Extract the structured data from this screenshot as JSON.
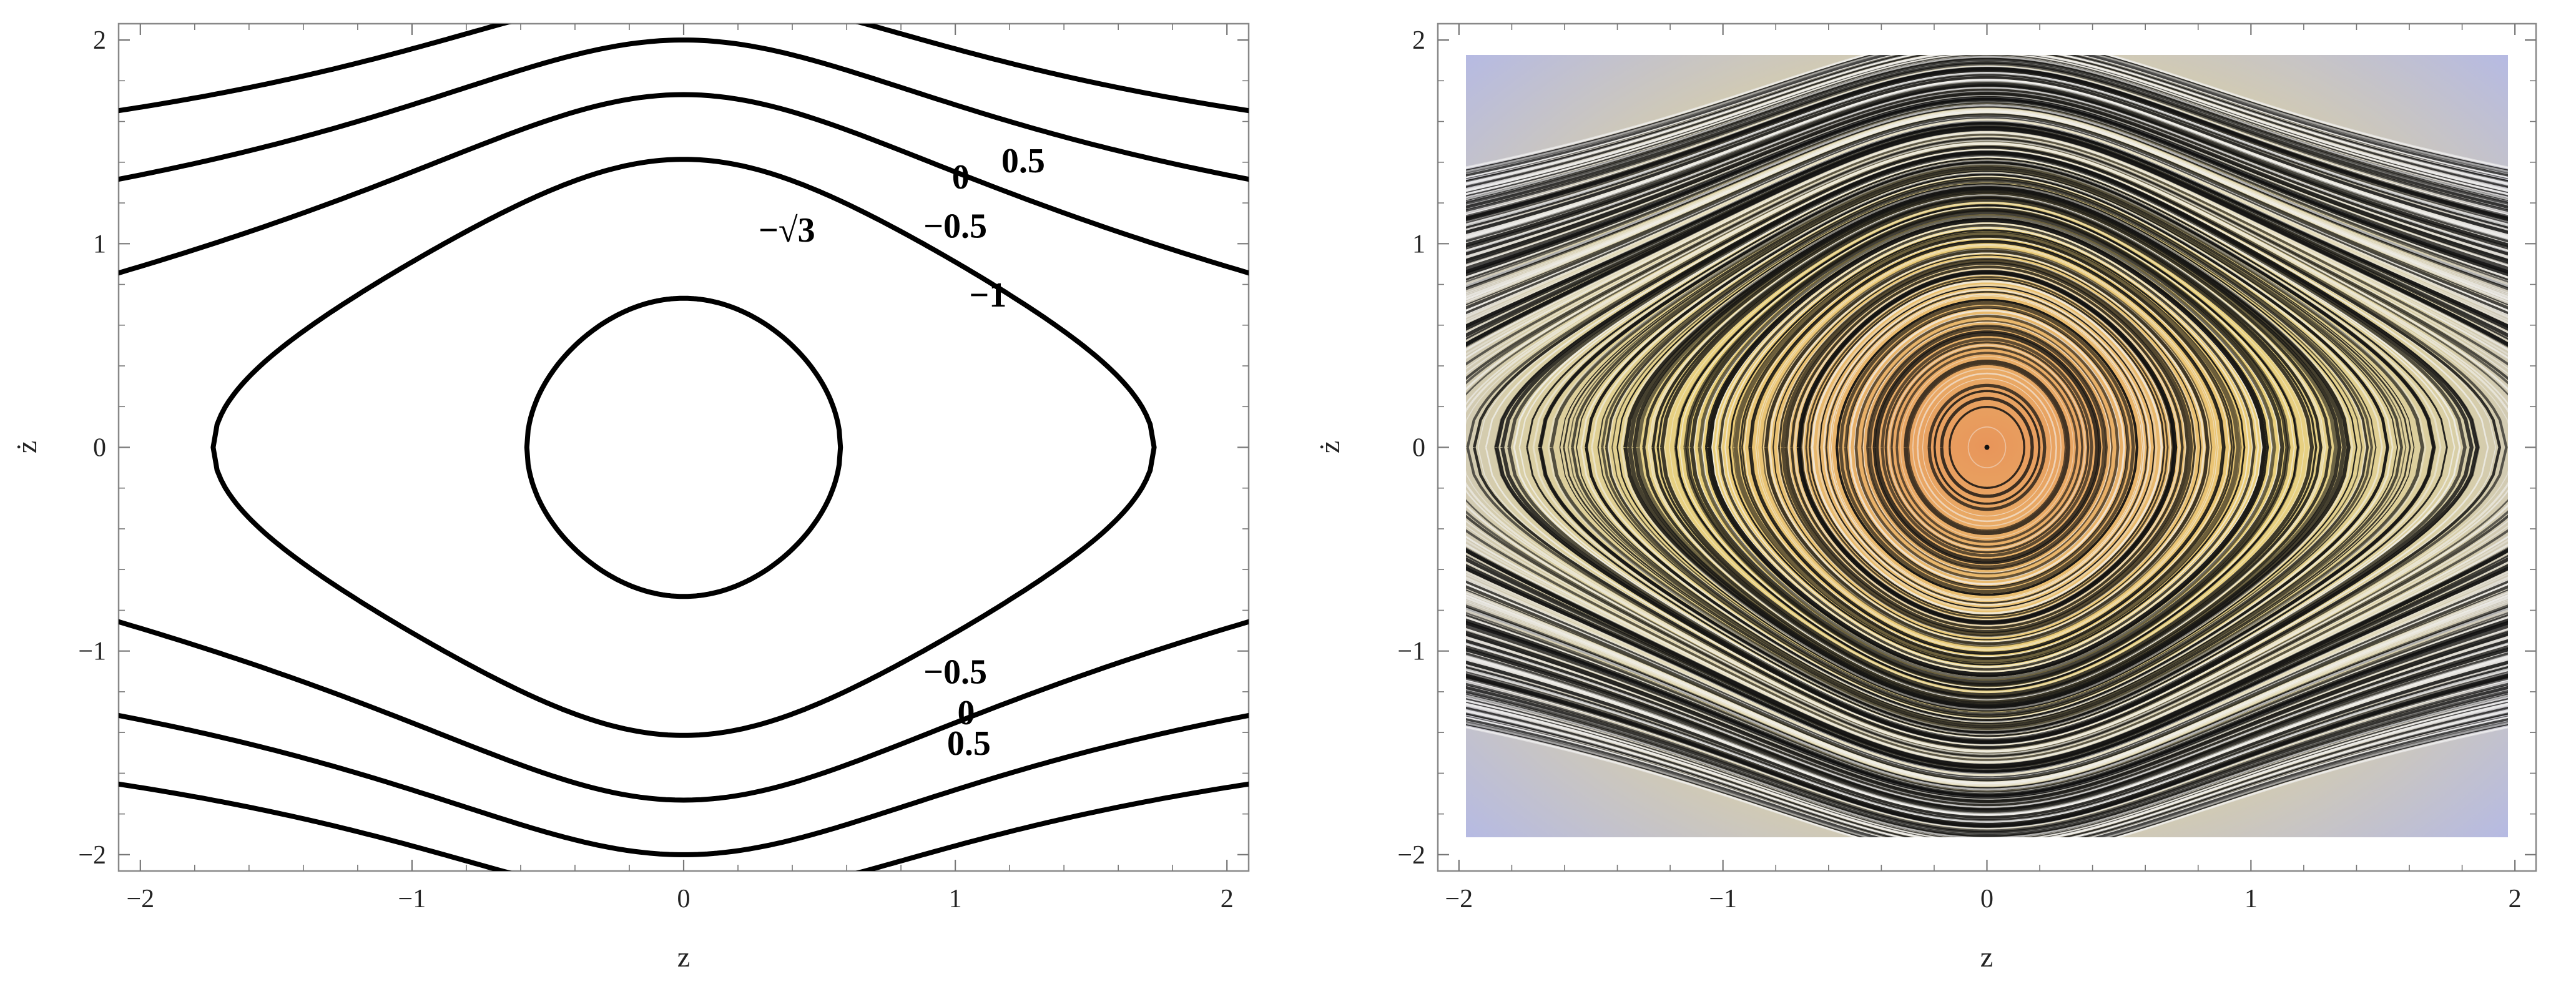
{
  "chart_data": [
    {
      "type": "contour",
      "xlabel": "z",
      "ylabel": "ż",
      "xlim": [
        -2.08,
        2.08
      ],
      "ylim": [
        -2.08,
        2.08
      ],
      "xticks": [
        -2,
        -1,
        0,
        1,
        2
      ],
      "yticks": [
        -2,
        -1,
        0,
        1,
        2
      ],
      "xtick_labels": [
        "−2",
        "−1",
        "0",
        "1",
        "2"
      ],
      "ytick_labels": [
        "−2",
        "−1",
        "0",
        "1",
        "2"
      ],
      "frame_color": "#888888",
      "curve_color": "#000000",
      "levels": [
        -1.7320508,
        -1,
        -0.5,
        0,
        0.5
      ],
      "contour_labels": [
        {
          "text": "0.5",
          "x": 1.25,
          "y": 1.39
        },
        {
          "text": "0",
          "x": 1.02,
          "y": 1.31
        },
        {
          "text": "−0.5",
          "x": 1.0,
          "y": 1.07
        },
        {
          "text": "−1",
          "x": 1.12,
          "y": 0.73
        },
        {
          "text": "−√3",
          "x": 0.38,
          "y": 1.05
        },
        {
          "text": "−0.5",
          "x": 1.0,
          "y": -1.12
        },
        {
          "text": "0",
          "x": 1.04,
          "y": -1.32
        },
        {
          "text": "0.5",
          "x": 1.05,
          "y": -1.47
        }
      ]
    },
    {
      "type": "streamplot",
      "xlabel": "z",
      "ylabel": "ż",
      "xlim": [
        -2.08,
        2.08
      ],
      "ylim": [
        -2.08,
        2.08
      ],
      "data_range_x": [
        -2,
        2
      ],
      "data_range_y": [
        -2,
        2
      ],
      "xticks": [
        -2,
        -1,
        0,
        1,
        2
      ],
      "yticks": [
        -2,
        -1,
        0,
        1,
        2
      ],
      "xtick_labels": [
        "−2",
        "−1",
        "0",
        "1",
        "2"
      ],
      "ytick_labels": [
        "−2",
        "−1",
        "0",
        "1",
        "2"
      ],
      "frame_color": "#888888",
      "colors": {
        "slow": "#e8955a",
        "mid": "#ead07a",
        "fast": "#b4b9e6",
        "streamline": "#111111",
        "highlight": "#f4f4f4"
      }
    }
  ]
}
